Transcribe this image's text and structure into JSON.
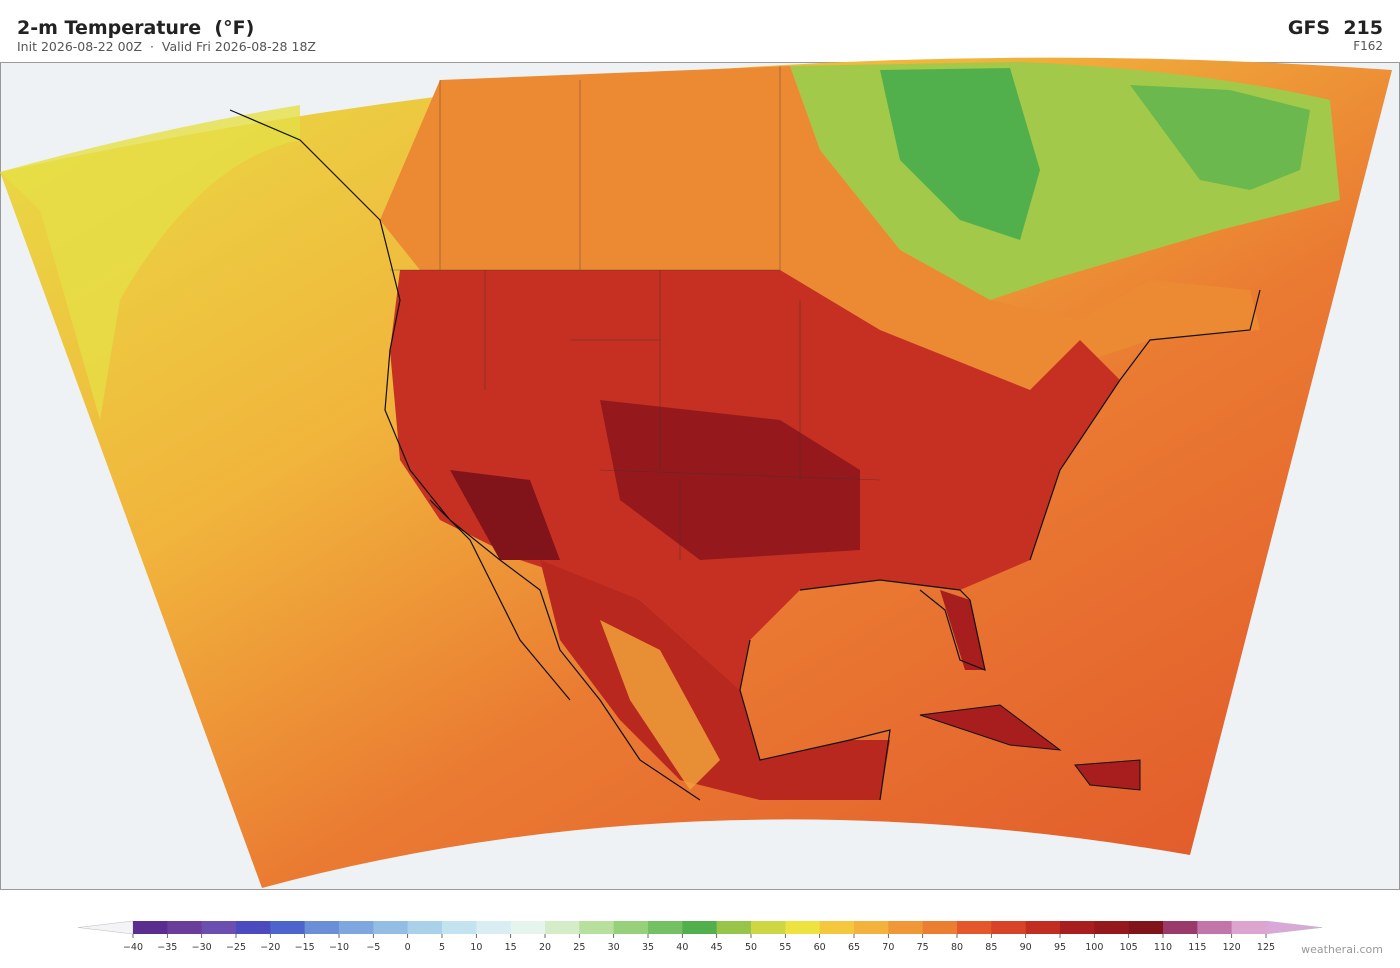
{
  "header": {
    "title": "2-m Temperature  (°F)",
    "subtitle": "Init 2026-08-22 00Z  ·  Valid Fri 2026-08-28 18Z",
    "model": "GFS  215",
    "forecast_hour": "F162"
  },
  "colorbar": {
    "ticks": [
      {
        "value": -40,
        "label": "−40"
      },
      {
        "value": -35,
        "label": "−35"
      },
      {
        "value": -30,
        "label": "−30"
      },
      {
        "value": -25,
        "label": "−25"
      },
      {
        "value": -20,
        "label": "−20"
      },
      {
        "value": -15,
        "label": "−15"
      },
      {
        "value": -10,
        "label": "−10"
      },
      {
        "value": -5,
        "label": "−5"
      },
      0,
      5,
      10,
      15,
      20,
      25,
      30,
      35,
      40,
      45,
      50,
      55,
      60,
      65,
      70,
      75,
      80,
      85,
      90,
      95,
      100,
      105,
      110,
      115,
      120,
      125
    ],
    "colors": [
      "#5b2d8e",
      "#6a3d9a",
      "#6b4fb0",
      "#4b4bbf",
      "#4d64cc",
      "#6a8fd6",
      "#7fa6de",
      "#94bde4",
      "#a9d2ea",
      "#c2e3ef",
      "#d8eef3",
      "#e6f4ee",
      "#d4ecc8",
      "#b7df9e",
      "#97d07a",
      "#74c165",
      "#52b04c",
      "#97c54a",
      "#cdd744",
      "#ede23f",
      "#f3c83c",
      "#f3b23c",
      "#f09838",
      "#ec7e32",
      "#e4572a",
      "#d84226",
      "#c22d22",
      "#a81e1e",
      "#95191c",
      "#80141a",
      "#9a3a6a",
      "#c275a8",
      "#dba5cf"
    ],
    "under_color": "#f4f4f6",
    "over_color": "#d9a8d9"
  },
  "credit": "weatherai.com"
}
